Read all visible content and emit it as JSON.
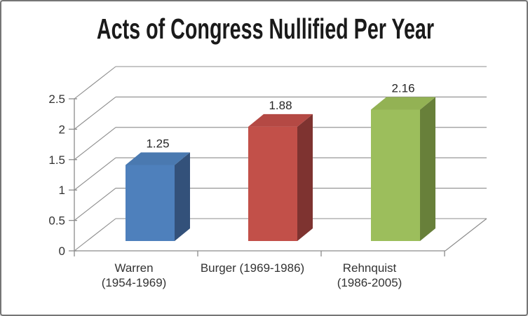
{
  "window": {
    "background": "#FFFFFF",
    "border_color": "#757575"
  },
  "chart_data": {
    "type": "bar",
    "style": "3d-column",
    "title": "Acts of Congress Nullified Per Year",
    "categories": [
      "Warren (1954-1969)",
      "Burger (1969-1986)",
      "Rehnquist (1986-2005)"
    ],
    "category_label_lines": [
      [
        "Warren",
        "(1954-1969)"
      ],
      [
        "Burger (1969-1986)"
      ],
      [
        "Rehnquist",
        "(1986-2005)"
      ]
    ],
    "values": [
      1.25,
      1.88,
      2.16
    ],
    "data_labels": [
      "1.25",
      "1.88",
      "2.16"
    ],
    "xlabel": "",
    "ylabel": "",
    "ylim": [
      0,
      2.5
    ],
    "ytick_step": 0.5,
    "ytick_labels": [
      "0",
      "0.5",
      "1",
      "1.5",
      "2",
      "2.5"
    ],
    "grid": true,
    "legend": "none",
    "bar_colors": [
      {
        "name": "blue",
        "front": "#4E80BC",
        "top": "#4A79B0",
        "side": "#33517A"
      },
      {
        "name": "red",
        "front": "#C25049",
        "top": "#B44944",
        "side": "#7E3330"
      },
      {
        "name": "green",
        "front": "#9CBE5C",
        "top": "#93B254",
        "side": "#68803A"
      }
    ],
    "gridline_color": "#8C8C8C",
    "axis_color": "#8C8C8C",
    "text_color": "#333333",
    "data_label_color": "#262626",
    "title_color": "#1A1A1A"
  }
}
